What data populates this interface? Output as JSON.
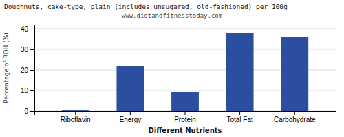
{
  "chart_data": {
    "type": "bar",
    "title": "Doughnuts, cake-type, plain (includes unsugared, old-fashioned) per 100g",
    "subtitle": "www.dietandfitnesstoday.com",
    "x_label": "Different Nutrients",
    "y_label": "Percentage of RDH (%)",
    "categories": [
      "Riboflavin",
      "Energy",
      "Protein",
      "Total Fat",
      "Carbohydrate"
    ],
    "values": [
      0.3,
      22,
      9,
      38,
      36
    ],
    "color": "#2b4f9e",
    "ylim": [
      0,
      42
    ],
    "yticks": [
      0,
      10,
      20,
      30,
      40
    ],
    "grid": true
  }
}
